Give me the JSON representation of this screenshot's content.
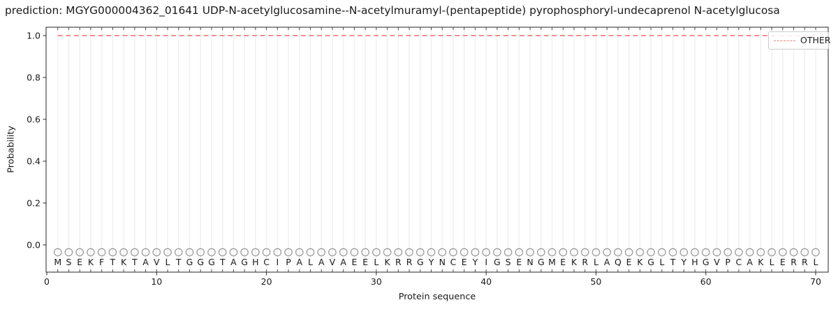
{
  "figure": {
    "title": "prediction: MGYG000004362_01641 UDP-N-acetylglucosamine--N-acetylmuramyl-(pentapeptide) pyrophosphoryl-undecaprenol N-acetylglucosa",
    "xlabel": "Protein sequence",
    "ylabel": "Probability",
    "legend": {
      "label": "OTHER",
      "position": "upper right",
      "line_style": "dashed"
    }
  },
  "colors": {
    "prediction_line": "#f08080",
    "grid_line": "#f0f0f0",
    "marker_stroke": "#9e9e9e",
    "spine": "#262626",
    "tick": "#262626",
    "minor_tick": "#444444",
    "text": "#1a1a1a",
    "legend_border": "#cccccc"
  },
  "chart_data": {
    "type": "line",
    "title": "prediction: MGYG000004362_01641 UDP-N-acetylglucosamine--N-acetylmuramyl-(pentapeptide) pyrophosphoryl-undecaprenol N-acetylglucosa",
    "xlabel": "Protein sequence",
    "ylabel": "Probability",
    "xlim": [
      -0.1,
      71.2
    ],
    "ylim": [
      -0.13,
      1.04
    ],
    "x_ticks": [
      0,
      10,
      20,
      30,
      40,
      50,
      60,
      70
    ],
    "y_ticks": [
      0.0,
      0.2,
      0.4,
      0.6,
      0.8,
      1.0
    ],
    "y_tick_labels": [
      "0.0",
      "0.2",
      "0.4",
      "0.6",
      "0.8",
      "1.0"
    ],
    "grid": "vertical gridline at every residue position, no horizontal gridlines",
    "legend_position": "upper right",
    "series": [
      {
        "name": "OTHER",
        "type": "line",
        "linestyle": "dashed",
        "color": "#f08080",
        "x_from": 1,
        "x_to": 70,
        "y_constant": 1.0,
        "note": "probability 1.0 for all 70 residues"
      }
    ],
    "sequence": "MSEKFTKTAVLTGGGTAGHCIPALAVAEELKRRGYNCEYIGSENGMEKRLAQEKGLTYHGVPCAKLERRL",
    "sequence_length": 70,
    "sequence_markers": {
      "shape": "open-circle",
      "color": "#9e9e9e",
      "y_constant": -0.035,
      "one_per_residue": true
    }
  }
}
